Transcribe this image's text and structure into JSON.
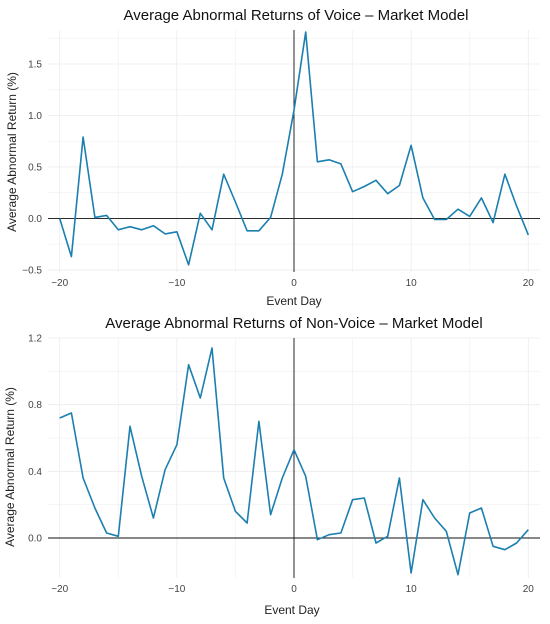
{
  "chart_data": [
    {
      "type": "line",
      "title": "Average Abnormal Returns of Voice  – Market Model",
      "xlabel": "Event Day",
      "ylabel": "Average Abnormal Return (%)",
      "xlim": [
        -21,
        21
      ],
      "ylim": [
        -0.52,
        1.83
      ],
      "xticks": [
        -20,
        -10,
        0,
        10,
        20
      ],
      "yticks": [
        -0.5,
        0.0,
        0.5,
        1.0,
        1.5
      ],
      "ytick_labels": [
        "-0.5",
        "0.0",
        "0.5",
        "1.0",
        "1.5"
      ],
      "grid": true,
      "reference_lines": {
        "x": 0,
        "y": 0
      },
      "color": "#1b7fb0",
      "x": [
        -20,
        -19,
        -18,
        -17,
        -16,
        -15,
        -14,
        -13,
        -12,
        -11,
        -10,
        -9,
        -8,
        -7,
        -6,
        -5,
        -4,
        -3,
        -2,
        -1,
        0,
        1,
        2,
        3,
        4,
        5,
        6,
        7,
        8,
        9,
        10,
        11,
        12,
        13,
        14,
        15,
        16,
        17,
        18,
        19,
        20
      ],
      "values": [
        0.0,
        -0.37,
        0.79,
        0.01,
        0.03,
        -0.11,
        -0.08,
        -0.11,
        -0.07,
        -0.15,
        -0.13,
        -0.45,
        0.05,
        -0.11,
        0.43,
        0.16,
        -0.12,
        -0.12,
        0.01,
        0.43,
        1.05,
        1.81,
        0.55,
        0.57,
        0.53,
        0.26,
        0.31,
        0.37,
        0.24,
        0.32,
        0.71,
        0.2,
        -0.01,
        -0.01,
        0.09,
        0.02,
        0.2,
        -0.04,
        0.43,
        0.12,
        -0.16
      ]
    },
    {
      "type": "line",
      "title": "Average Abnormal Returns of Non-Voice – Market Model",
      "xlabel": "Event Day",
      "ylabel": "Average Abnormal Return (%)",
      "xlim": [
        -21,
        21
      ],
      "ylim": [
        -0.24,
        1.2
      ],
      "xticks": [
        -20,
        -10,
        0,
        10,
        20
      ],
      "yticks": [
        0.0,
        0.4,
        0.8,
        1.2
      ],
      "ytick_labels": [
        "0.0",
        "0.4",
        "0.8",
        "1.2"
      ],
      "grid": true,
      "reference_lines": {
        "x": 0,
        "y": 0
      },
      "color": "#1b7fb0",
      "x": [
        -20,
        -19,
        -18,
        -17,
        -16,
        -15,
        -14,
        -13,
        -12,
        -11,
        -10,
        -9,
        -8,
        -7,
        -6,
        -5,
        -4,
        -3,
        -2,
        -1,
        0,
        1,
        2,
        3,
        4,
        5,
        6,
        7,
        8,
        9,
        10,
        11,
        12,
        13,
        14,
        15,
        16,
        17,
        18,
        19,
        20
      ],
      "values": [
        0.72,
        0.75,
        0.36,
        0.18,
        0.03,
        0.01,
        0.67,
        0.37,
        0.12,
        0.41,
        0.56,
        1.04,
        0.84,
        1.14,
        0.36,
        0.16,
        0.09,
        0.7,
        0.14,
        0.36,
        0.53,
        0.37,
        -0.01,
        0.02,
        0.03,
        0.23,
        0.24,
        -0.03,
        0.01,
        0.36,
        -0.21,
        0.23,
        0.12,
        0.04,
        -0.22,
        0.15,
        0.18,
        -0.05,
        -0.07,
        -0.03,
        0.05
      ]
    }
  ]
}
